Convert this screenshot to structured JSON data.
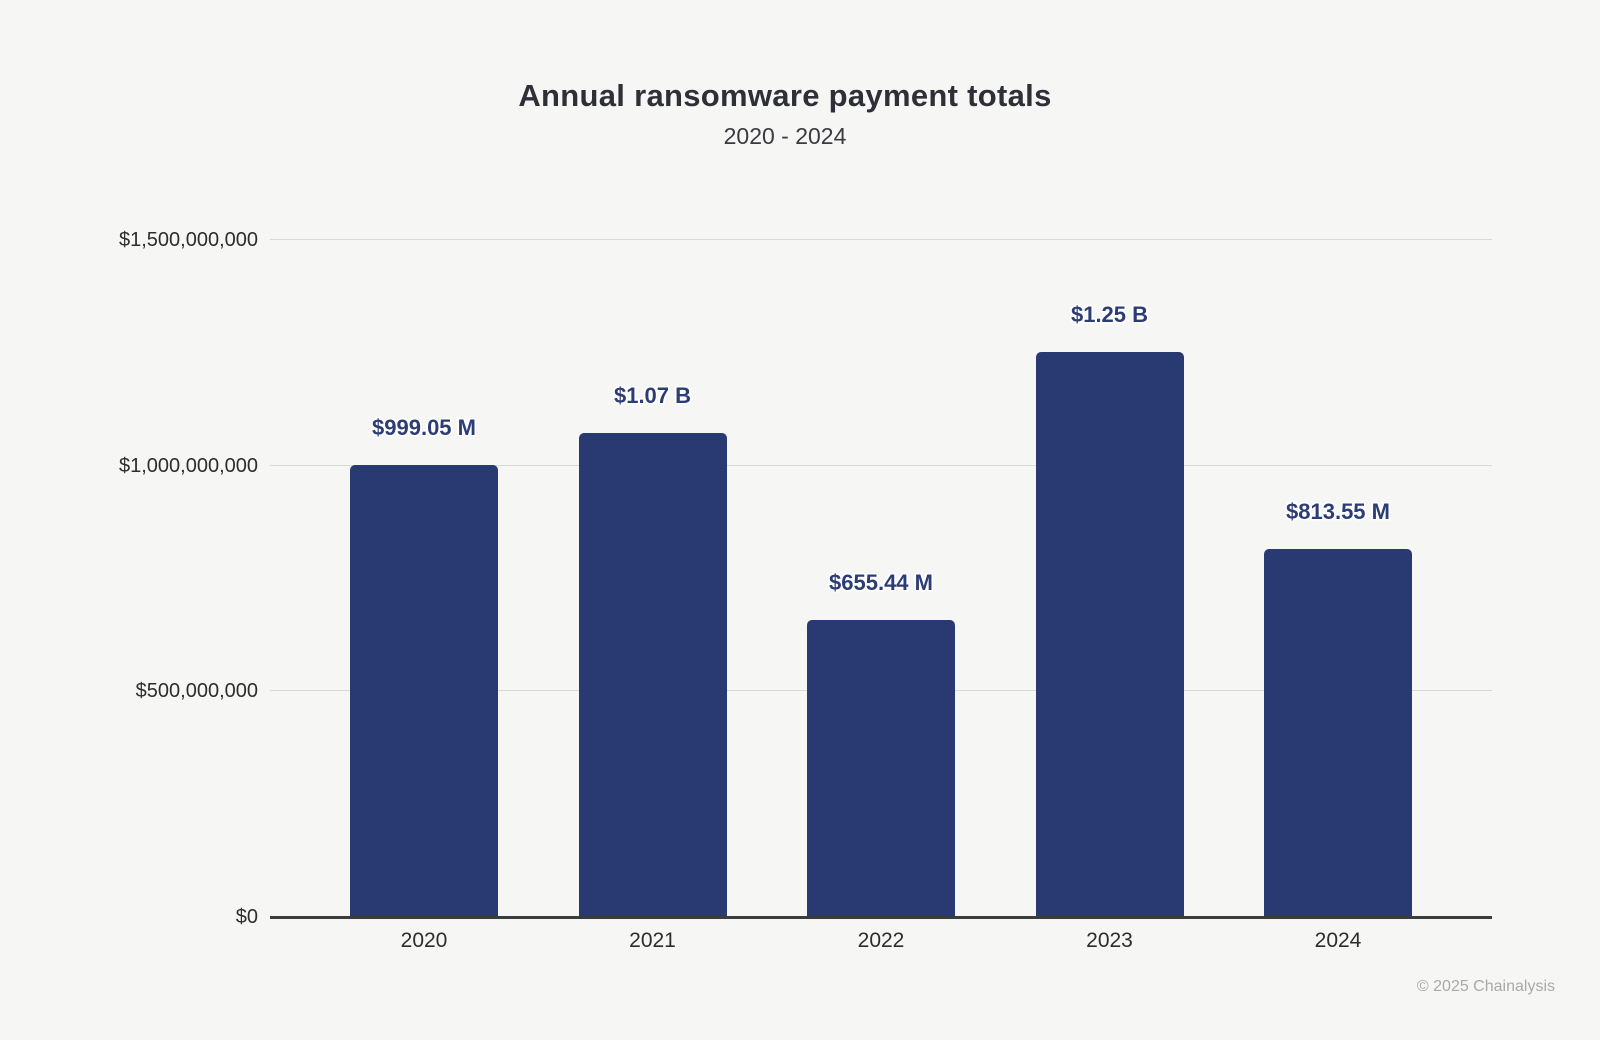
{
  "page": {
    "background": "#f6f6f4"
  },
  "chart": {
    "title": "Annual ransomware payment totals",
    "subtitle": "2020 - 2024"
  },
  "footer": {
    "text": "© 2025 Chainalysis"
  },
  "colors": {
    "background": "#f6f6f4",
    "bar": "#293a72",
    "value_label": "#2c3c74",
    "gridline": "#d9d9d8",
    "axis_line": "#3c3c3c",
    "title_text": "#2f2f38",
    "subtitle_text": "#3a3a41",
    "tick_text": "#2d2d2d",
    "footer_text": "#a9a9a9"
  },
  "chart_data": {
    "type": "bar",
    "title": "Annual ransomware payment totals",
    "subtitle": "2020 - 2024",
    "categories": [
      "2020",
      "2021",
      "2022",
      "2023",
      "2024"
    ],
    "values": [
      999050000,
      1070000000,
      655440000,
      1250000000,
      813550000
    ],
    "value_labels": [
      "$999.05 M",
      "$1.07 B",
      "$655.44 M",
      "$1.25 B",
      "$813.55 M"
    ],
    "xlabel": "",
    "ylabel": "",
    "ylim": [
      0,
      1500000000
    ],
    "yticks": [
      {
        "value": 1500000000,
        "label": "$1,500,000,000"
      },
      {
        "value": 1000000000,
        "label": "$1,000,000,000"
      },
      {
        "value": 500000000,
        "label": "$500,000,000"
      },
      {
        "value": 0,
        "label": "$0"
      }
    ],
    "grid": true,
    "legend": false,
    "bar_color": "#293a72",
    "attribution": "© 2025 Chainalysis"
  }
}
